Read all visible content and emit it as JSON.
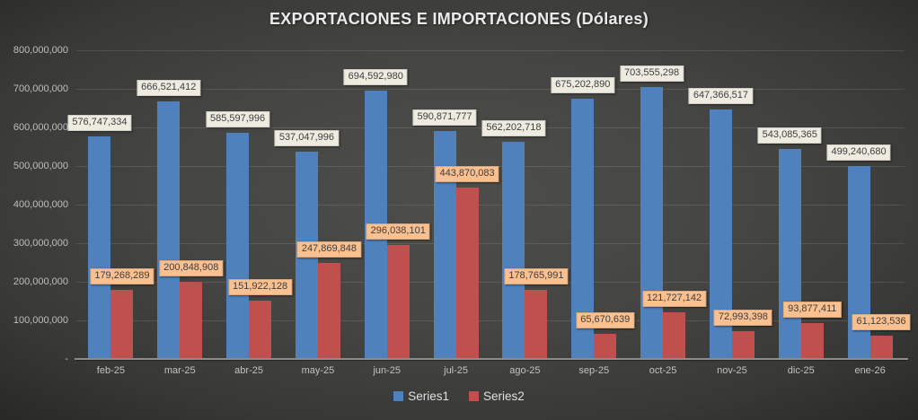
{
  "title": "EXPORTACIONES E IMPORTACIONES (Dólares)",
  "chart_data": {
    "type": "bar",
    "title": "EXPORTACIONES E IMPORTACIONES (Dólares)",
    "xlabel": "",
    "ylabel": "",
    "categories": [
      "feb-25",
      "mar-25",
      "abr-25",
      "may-25",
      "jun-25",
      "jul-25",
      "ago-25",
      "sep-25",
      "oct-25",
      "nov-25",
      "dic-25",
      "ene-26"
    ],
    "series": [
      {
        "name": "Series1",
        "color": "#4F81BD",
        "label_bg": "#EEECE1",
        "values": [
          576747334,
          666521412,
          585597996,
          537047996,
          694592980,
          590871777,
          562202718,
          675202890,
          703555298,
          647366517,
          543085365,
          499240680
        ]
      },
      {
        "name": "Series2",
        "color": "#C0504D",
        "label_bg": "#FAC090",
        "values": [
          179268289,
          200848908,
          151922128,
          247869848,
          296038101,
          443870083,
          178765991,
          65670639,
          121727142,
          72993398,
          93877411,
          61123536
        ]
      }
    ],
    "ylim": [
      0,
      800000000
    ],
    "ytick_step": 100000000,
    "ytick_labels": [
      "-",
      "100,000,000",
      "200,000,000",
      "300,000,000",
      "400,000,000",
      "500,000,000",
      "600,000,000",
      "700,000,000",
      "800,000,000"
    ],
    "grid": true,
    "data_labels": true,
    "legend_position": "bottom"
  },
  "colors": {
    "background_center": "#4D4D4B",
    "background_edge": "#232321",
    "gridline": "rgba(255,255,255,0.11)",
    "axis_line": "#8C8C8C",
    "tick_text": "#BFBFBF",
    "title_text": "#ECECEC",
    "legend_text": "#E0E0E0",
    "series1": "#4F81BD",
    "series2": "#C0504D",
    "label_bg_series1": "#EEECE1",
    "label_bg_series2": "#FAC090",
    "label_text": "#3D3D3D"
  }
}
